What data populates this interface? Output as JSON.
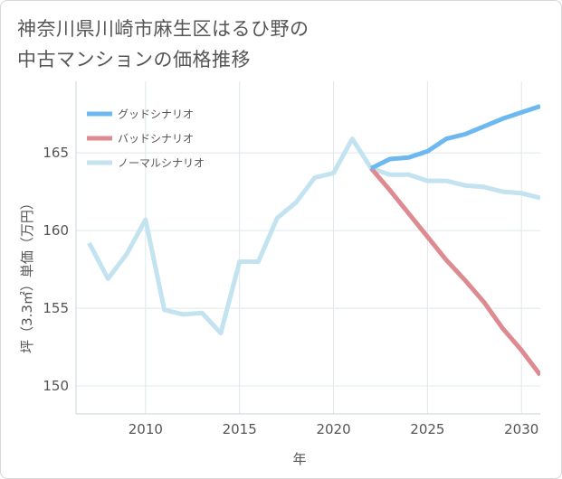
{
  "title": {
    "line1": "神奈川県川崎市麻生区はるひ野の",
    "line2": "中古マンションの価格推移"
  },
  "chart_data": {
    "type": "line",
    "title": "神奈川県川崎市麻生区はるひ野の中古マンションの価格推移",
    "xlabel": "年",
    "ylabel": "坪（3.3㎡）単価（万円）",
    "xlim": [
      2006.3,
      2031
    ],
    "ylim": [
      148.2,
      169.6
    ],
    "xticks": [
      2010,
      2015,
      2020,
      2025,
      2030
    ],
    "yticks": [
      150,
      155,
      160,
      165
    ],
    "grid": true,
    "legend_position": "top-left",
    "series": [
      {
        "name": "グッドシナリオ",
        "color": "#6db9ef",
        "x": [
          2022,
          2023,
          2024,
          2025,
          2026,
          2027,
          2028,
          2029,
          2030,
          2031
        ],
        "values": [
          164.0,
          164.6,
          164.7,
          165.1,
          165.9,
          166.2,
          166.7,
          167.2,
          167.6,
          168.0
        ]
      },
      {
        "name": "バッドシナリオ",
        "color": "#dd8a91",
        "x": [
          2022,
          2023,
          2024,
          2025,
          2026,
          2027,
          2028,
          2029,
          2030,
          2031
        ],
        "values": [
          164.0,
          162.6,
          161.1,
          159.6,
          158.1,
          156.8,
          155.4,
          153.7,
          152.3,
          150.7
        ]
      },
      {
        "name": "ノーマルシナリオ",
        "color": "#c2e3ef",
        "x": [
          2007,
          2008,
          2009,
          2010,
          2011,
          2012,
          2013,
          2014,
          2015,
          2016,
          2017,
          2018,
          2019,
          2020,
          2021,
          2022,
          2023,
          2024,
          2025,
          2026,
          2027,
          2028,
          2029,
          2030,
          2031
        ],
        "values": [
          159.2,
          156.9,
          158.5,
          160.7,
          154.9,
          154.6,
          154.7,
          153.4,
          158.0,
          158.0,
          160.8,
          161.8,
          163.4,
          163.7,
          165.9,
          164.0,
          163.6,
          163.6,
          163.2,
          163.2,
          162.9,
          162.8,
          162.5,
          162.4,
          162.1
        ]
      }
    ]
  }
}
